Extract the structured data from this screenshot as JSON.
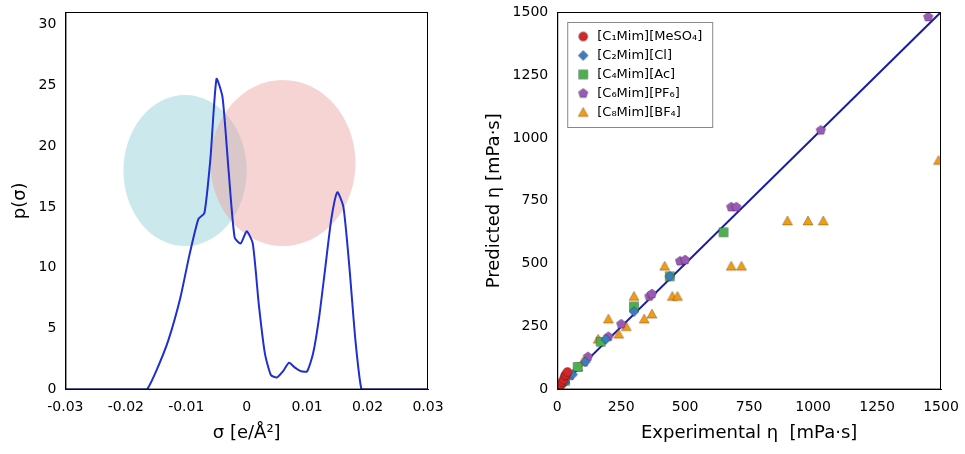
{
  "chart_data": [
    {
      "type": "line",
      "x_label": "σ [e/Å²]",
      "y_label": "p(σ)",
      "x": [
        -0.03,
        -0.017,
        -0.0165,
        -0.015,
        -0.013,
        -0.011,
        -0.0095,
        -0.008,
        -0.007,
        -0.006,
        -0.005,
        -0.004,
        -0.003,
        -0.002,
        -0.001,
        0,
        0.001,
        0.002,
        0.003,
        0.004,
        0.005,
        0.006,
        0.007,
        0.008,
        0.009,
        0.01,
        0.011,
        0.012,
        0.013,
        0.014,
        0.015,
        0.016,
        0.017,
        0.018,
        0.019,
        0.02,
        0.03
      ],
      "values": [
        0,
        0,
        0,
        1.5,
        4,
        7.5,
        11,
        14,
        14.5,
        19,
        25.5,
        24,
        18,
        12.5,
        12,
        13,
        12,
        7,
        3,
        1.2,
        1,
        1.5,
        2.2,
        1.8,
        1.5,
        1.5,
        3,
        6,
        10,
        14,
        16.2,
        15,
        10,
        4,
        0,
        0,
        0
      ],
      "color": "#1f2fd0",
      "xlim": [
        -0.03,
        0.03
      ],
      "xticks": [
        -0.03,
        -0.02,
        -0.01,
        0,
        0.01,
        0.02,
        0.03
      ],
      "ylim": [
        0,
        31
      ],
      "yticks": [
        0,
        5,
        10,
        15,
        20,
        25,
        30
      ],
      "grid": false
    },
    {
      "type": "scatter",
      "x_label": "Experimental η  [mPa·s]",
      "y_label": "Predicted η [mPa·s]",
      "series": [
        {
          "name": "[C₁Mim][MeSO₄]",
          "color": "#d62728",
          "marker": "circle",
          "x": [
            10,
            15,
            20,
            25,
            30,
            35,
            40
          ],
          "values": [
            15,
            20,
            30,
            40,
            55,
            60,
            70
          ]
        },
        {
          "name": "[C₂Mim][Cl]",
          "color": "#3b7dbf",
          "marker": "diamond",
          "x": [
            30,
            60,
            110,
            190,
            300,
            440
          ],
          "values": [
            30,
            60,
            110,
            200,
            310,
            450
          ]
        },
        {
          "name": "[C₄Mim][Ac]",
          "color": "#4caf50",
          "marker": "square",
          "x": [
            30,
            80,
            170,
            300,
            440,
            650
          ],
          "values": [
            35,
            90,
            190,
            330,
            450,
            625
          ]
        },
        {
          "name": "[C₆Mim][PF₆]",
          "color": "#9b59b6",
          "marker": "pentagon",
          "x": [
            50,
            120,
            200,
            250,
            360,
            370,
            480,
            500,
            680,
            700,
            1030,
            1450
          ],
          "values": [
            55,
            130,
            210,
            260,
            370,
            380,
            510,
            515,
            725,
            725,
            1030,
            1480
          ]
        },
        {
          "name": "[C₈Mim][BF₄]",
          "color": "#f39c12",
          "marker": "triangle",
          "x": [
            30,
            80,
            100,
            160,
            200,
            240,
            270,
            300,
            340,
            370,
            420,
            450,
            470,
            680,
            720,
            900,
            980,
            1040,
            1490
          ],
          "values": [
            40,
            90,
            110,
            200,
            280,
            220,
            250,
            370,
            280,
            300,
            490,
            370,
            370,
            490,
            490,
            670,
            670,
            670,
            910
          ]
        }
      ],
      "reference_line": {
        "x": [
          0,
          1500
        ],
        "values": [
          0,
          1500
        ],
        "color": "#1a1aa8"
      },
      "xlim": [
        0,
        1500
      ],
      "xticks": [
        0,
        250,
        500,
        750,
        1000,
        1250,
        1500
      ],
      "ylim": [
        0,
        1500
      ],
      "yticks": [
        0,
        250,
        500,
        750,
        1000,
        1250,
        1500
      ],
      "grid": false,
      "legend": "upper left"
    }
  ]
}
